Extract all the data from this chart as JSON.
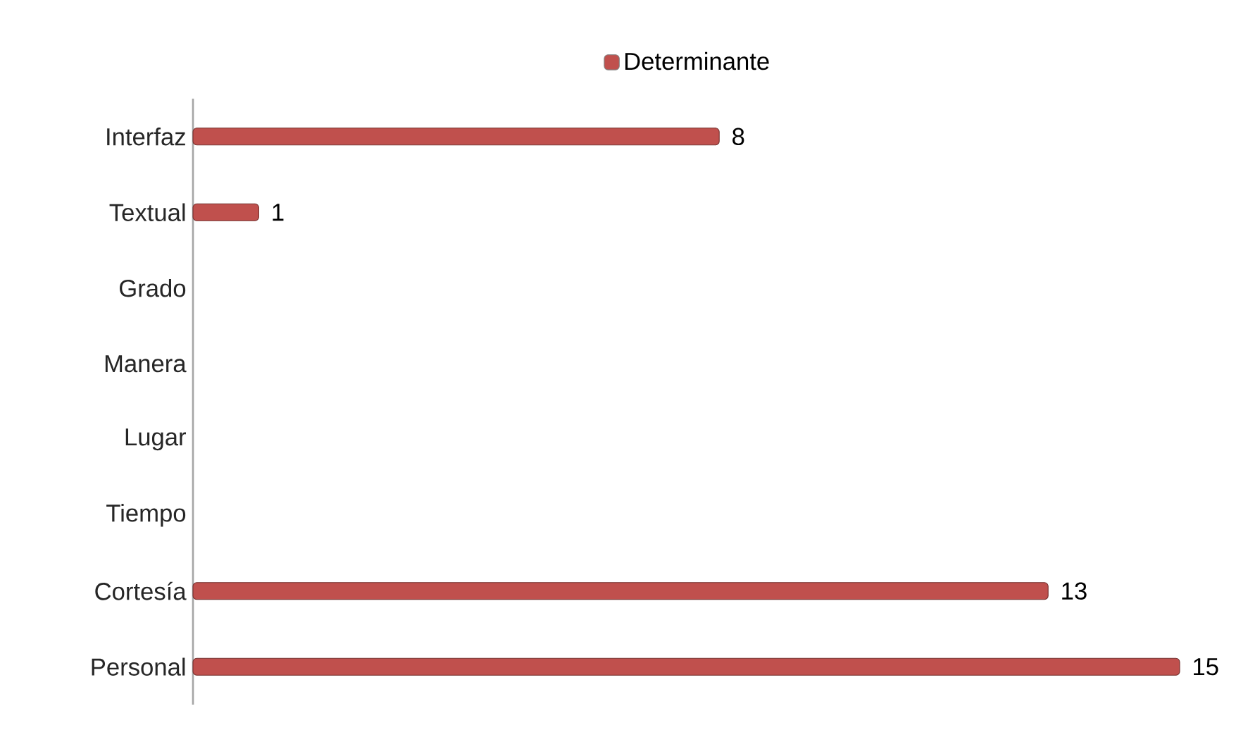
{
  "chart_data": {
    "type": "bar",
    "orientation": "horizontal",
    "tick_labels": "y",
    "data_labels": true,
    "legend": "top",
    "categories": [
      "Interfaz",
      "Textual",
      "Grado",
      "Manera",
      "Lugar",
      "Tiempo",
      "Cortesía",
      "Personal"
    ],
    "series": [
      {
        "name": "Determinante",
        "color": "#c0504d",
        "values": [
          8,
          1,
          null,
          null,
          null,
          null,
          13,
          15
        ]
      }
    ]
  }
}
